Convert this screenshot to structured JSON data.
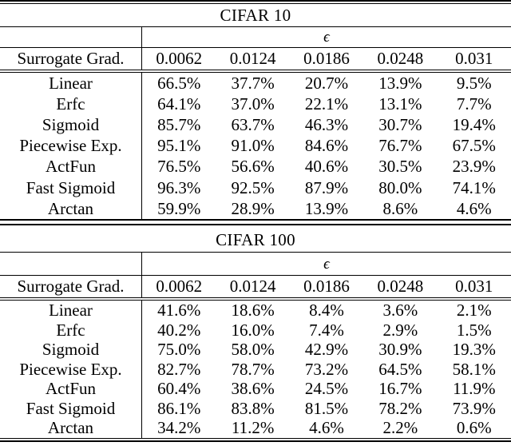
{
  "epsilon_symbol": "ϵ",
  "row_header_label": "Surrogate Grad.",
  "colors": {
    "text": "#000000",
    "background": "#ffffff",
    "rule": "#000000"
  },
  "tables": [
    {
      "title": "CIFAR 10",
      "epsilon_values": [
        "0.0062",
        "0.0124",
        "0.0186",
        "0.0248",
        "0.031"
      ],
      "rows": [
        {
          "label": "Linear",
          "values": [
            "66.5%",
            "37.7%",
            "20.7%",
            "13.9%",
            "9.5%"
          ]
        },
        {
          "label": "Erfc",
          "values": [
            "64.1%",
            "37.0%",
            "22.1%",
            "13.1%",
            "7.7%"
          ]
        },
        {
          "label": "Sigmoid",
          "values": [
            "85.7%",
            "63.7%",
            "46.3%",
            "30.7%",
            "19.4%"
          ]
        },
        {
          "label": "Piecewise Exp.",
          "values": [
            "95.1%",
            "91.0%",
            "84.6%",
            "76.7%",
            "67.5%"
          ]
        },
        {
          "label": "ActFun",
          "values": [
            "76.5%",
            "56.6%",
            "40.6%",
            "30.5%",
            "23.9%"
          ]
        },
        {
          "label": "Fast Sigmoid",
          "values": [
            "96.3%",
            "92.5%",
            "87.9%",
            "80.0%",
            "74.1%"
          ]
        },
        {
          "label": "Arctan",
          "values": [
            "59.9%",
            "28.9%",
            "13.9%",
            "8.6%",
            "4.6%"
          ]
        }
      ]
    },
    {
      "title": "CIFAR 100",
      "epsilon_values": [
        "0.0062",
        "0.0124",
        "0.0186",
        "0.0248",
        "0.031"
      ],
      "rows": [
        {
          "label": "Linear",
          "values": [
            "41.6%",
            "18.6%",
            "8.4%",
            "3.6%",
            "2.1%"
          ]
        },
        {
          "label": "Erfc",
          "values": [
            "40.2%",
            "16.0%",
            "7.4%",
            "2.9%",
            "1.5%"
          ]
        },
        {
          "label": "Sigmoid",
          "values": [
            "75.0%",
            "58.0%",
            "42.9%",
            "30.9%",
            "19.3%"
          ]
        },
        {
          "label": "Piecewise Exp.",
          "values": [
            "82.7%",
            "78.7%",
            "73.2%",
            "64.5%",
            "58.1%"
          ]
        },
        {
          "label": "ActFun",
          "values": [
            "60.4%",
            "38.6%",
            "24.5%",
            "16.7%",
            "11.9%"
          ]
        },
        {
          "label": "Fast Sigmoid",
          "values": [
            "86.1%",
            "83.8%",
            "81.5%",
            "78.2%",
            "73.9%"
          ]
        },
        {
          "label": "Arctan",
          "values": [
            "34.2%",
            "11.2%",
            "4.6%",
            "2.2%",
            "0.6%"
          ]
        }
      ]
    }
  ]
}
